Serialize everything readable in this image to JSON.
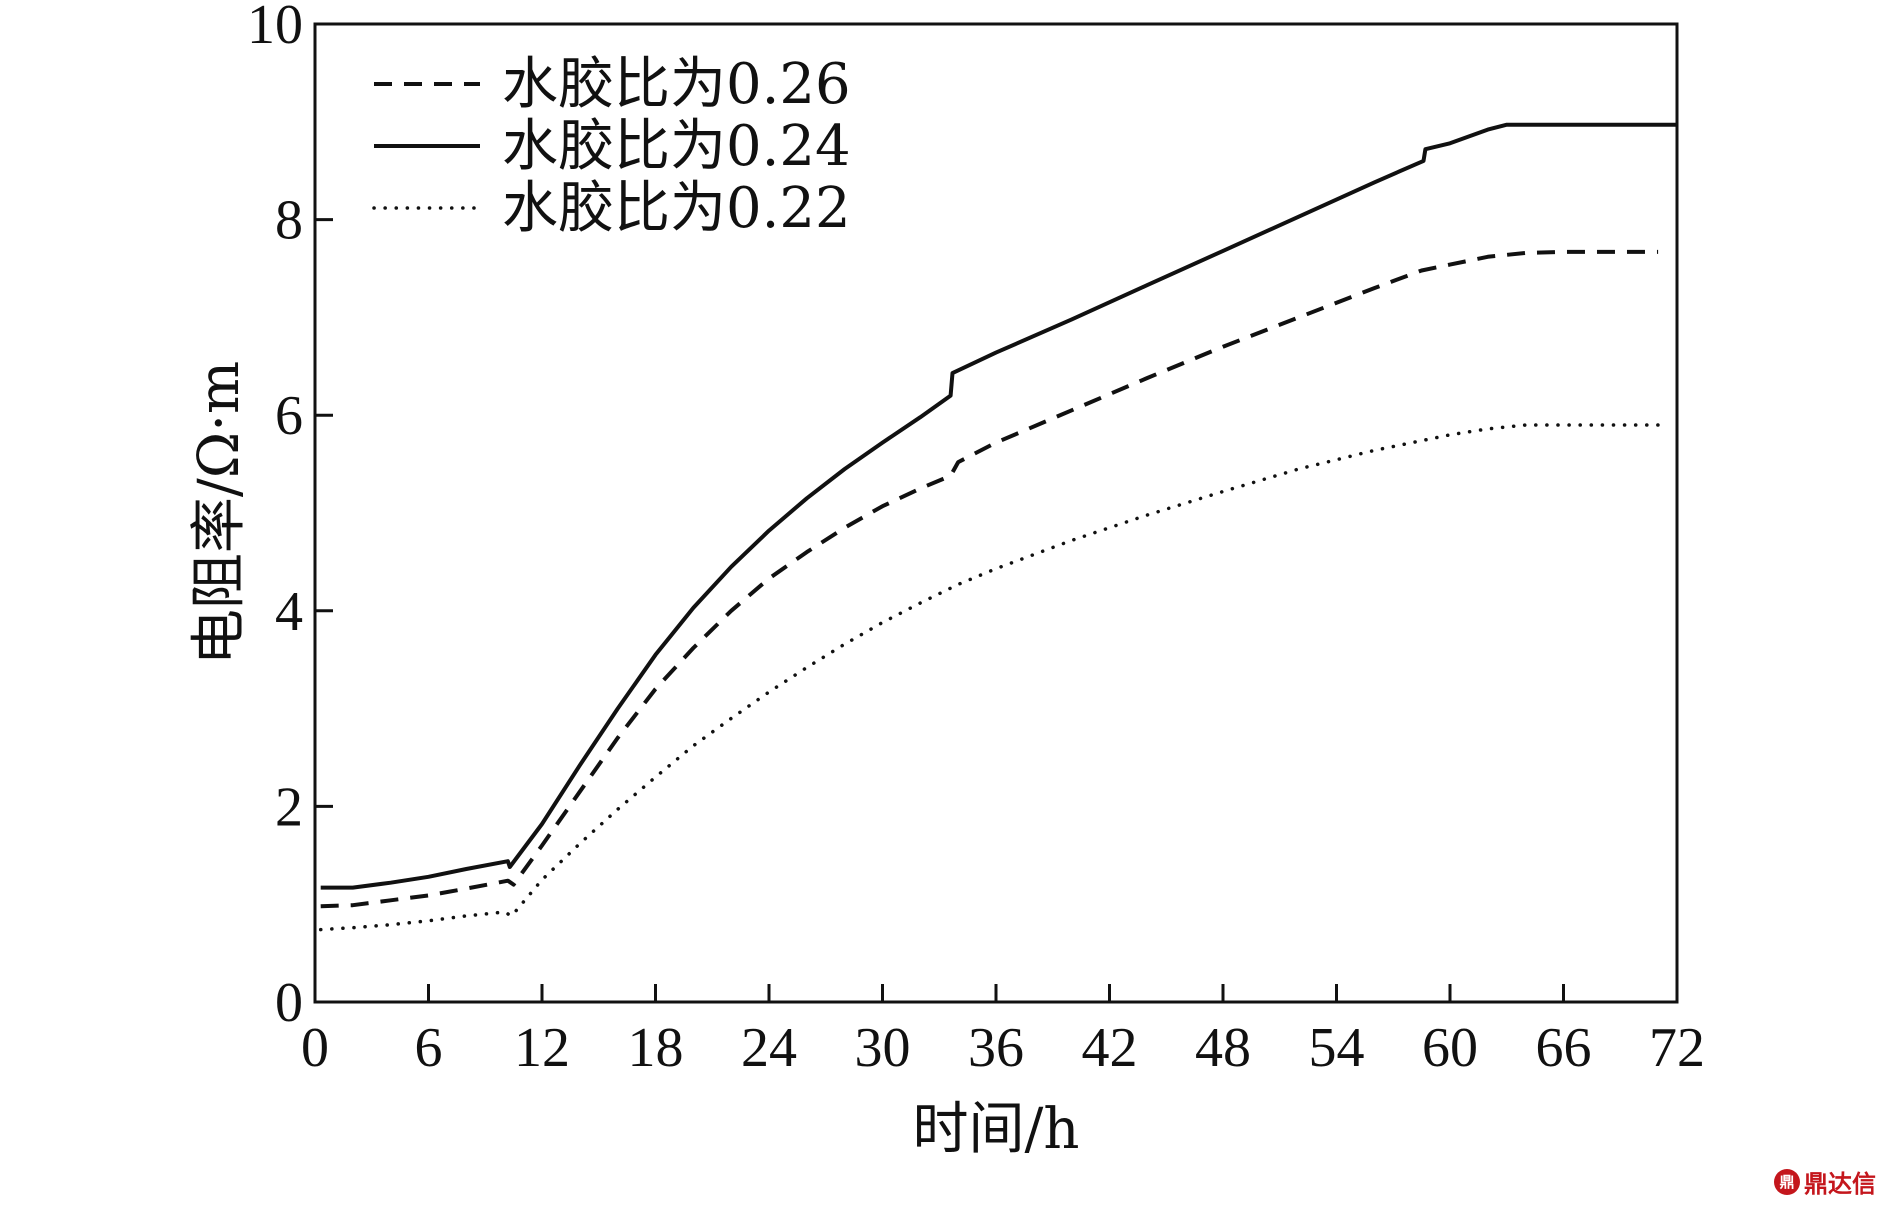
{
  "chart_data": {
    "type": "line",
    "xlabel": "时间/h",
    "ylabel": "电阻率/Ω·m",
    "xlim": [
      0,
      72
    ],
    "ylim": [
      0,
      10
    ],
    "xticks": [
      0,
      6,
      12,
      18,
      24,
      30,
      36,
      42,
      48,
      54,
      60,
      66,
      72
    ],
    "yticks": [
      0,
      2,
      4,
      6,
      8,
      10
    ],
    "grid": false,
    "legend_position": "top-left",
    "series": [
      {
        "name": "水胶比为0.26",
        "style": "dashed",
        "color": "#111111",
        "points": [
          [
            0.3,
            0.98
          ],
          [
            2,
            0.99
          ],
          [
            4,
            1.04
          ],
          [
            6,
            1.09
          ],
          [
            8,
            1.16
          ],
          [
            10.2,
            1.24
          ],
          [
            10.5,
            1.2
          ],
          [
            12,
            1.6
          ],
          [
            14,
            2.15
          ],
          [
            16,
            2.7
          ],
          [
            18,
            3.2
          ],
          [
            20,
            3.62
          ],
          [
            22,
            4.0
          ],
          [
            24,
            4.33
          ],
          [
            26,
            4.6
          ],
          [
            28,
            4.85
          ],
          [
            30,
            5.07
          ],
          [
            32,
            5.25
          ],
          [
            33.6,
            5.38
          ],
          [
            34,
            5.52
          ],
          [
            36,
            5.72
          ],
          [
            40,
            6.05
          ],
          [
            44,
            6.38
          ],
          [
            48,
            6.7
          ],
          [
            52,
            7.0
          ],
          [
            56,
            7.3
          ],
          [
            58.5,
            7.48
          ],
          [
            60,
            7.54
          ],
          [
            62,
            7.62
          ],
          [
            64,
            7.66
          ],
          [
            66,
            7.67
          ],
          [
            71,
            7.67
          ]
        ]
      },
      {
        "name": "水胶比为0.24",
        "style": "solid",
        "color": "#111111",
        "points": [
          [
            0.3,
            1.17
          ],
          [
            2,
            1.17
          ],
          [
            4,
            1.22
          ],
          [
            6,
            1.28
          ],
          [
            8,
            1.36
          ],
          [
            10.2,
            1.44
          ],
          [
            10.3,
            1.38
          ],
          [
            12,
            1.82
          ],
          [
            14,
            2.42
          ],
          [
            16,
            3.0
          ],
          [
            18,
            3.55
          ],
          [
            20,
            4.03
          ],
          [
            22,
            4.45
          ],
          [
            24,
            4.82
          ],
          [
            26,
            5.15
          ],
          [
            28,
            5.45
          ],
          [
            30,
            5.72
          ],
          [
            32,
            5.98
          ],
          [
            33.6,
            6.2
          ],
          [
            33.7,
            6.43
          ],
          [
            36,
            6.64
          ],
          [
            40,
            6.98
          ],
          [
            44,
            7.33
          ],
          [
            48,
            7.68
          ],
          [
            52,
            8.03
          ],
          [
            56,
            8.38
          ],
          [
            58.6,
            8.6
          ],
          [
            58.7,
            8.72
          ],
          [
            60,
            8.78
          ],
          [
            62,
            8.92
          ],
          [
            63,
            8.97
          ],
          [
            66,
            8.97
          ],
          [
            72,
            8.97
          ]
        ]
      },
      {
        "name": "水胶比为0.22",
        "style": "dotted",
        "color": "#111111",
        "points": [
          [
            0.3,
            0.74
          ],
          [
            2,
            0.76
          ],
          [
            4,
            0.79
          ],
          [
            6,
            0.83
          ],
          [
            8,
            0.88
          ],
          [
            10,
            0.92
          ],
          [
            10.4,
            0.88
          ],
          [
            12,
            1.25
          ],
          [
            14,
            1.62
          ],
          [
            16,
            1.97
          ],
          [
            18,
            2.3
          ],
          [
            20,
            2.62
          ],
          [
            22,
            2.9
          ],
          [
            24,
            3.17
          ],
          [
            26,
            3.42
          ],
          [
            28,
            3.66
          ],
          [
            30,
            3.88
          ],
          [
            32,
            4.08
          ],
          [
            34,
            4.27
          ],
          [
            36,
            4.43
          ],
          [
            40,
            4.72
          ],
          [
            44,
            4.98
          ],
          [
            48,
            5.22
          ],
          [
            52,
            5.45
          ],
          [
            56,
            5.64
          ],
          [
            58,
            5.72
          ],
          [
            60,
            5.8
          ],
          [
            62,
            5.86
          ],
          [
            64,
            5.9
          ],
          [
            66,
            5.9
          ],
          [
            71.5,
            5.9
          ]
        ]
      }
    ]
  },
  "watermark": {
    "icon_name": "dingdaxin-logo-icon",
    "icon_text": "鼎",
    "text": "鼎达信",
    "color": "#c4161c"
  }
}
